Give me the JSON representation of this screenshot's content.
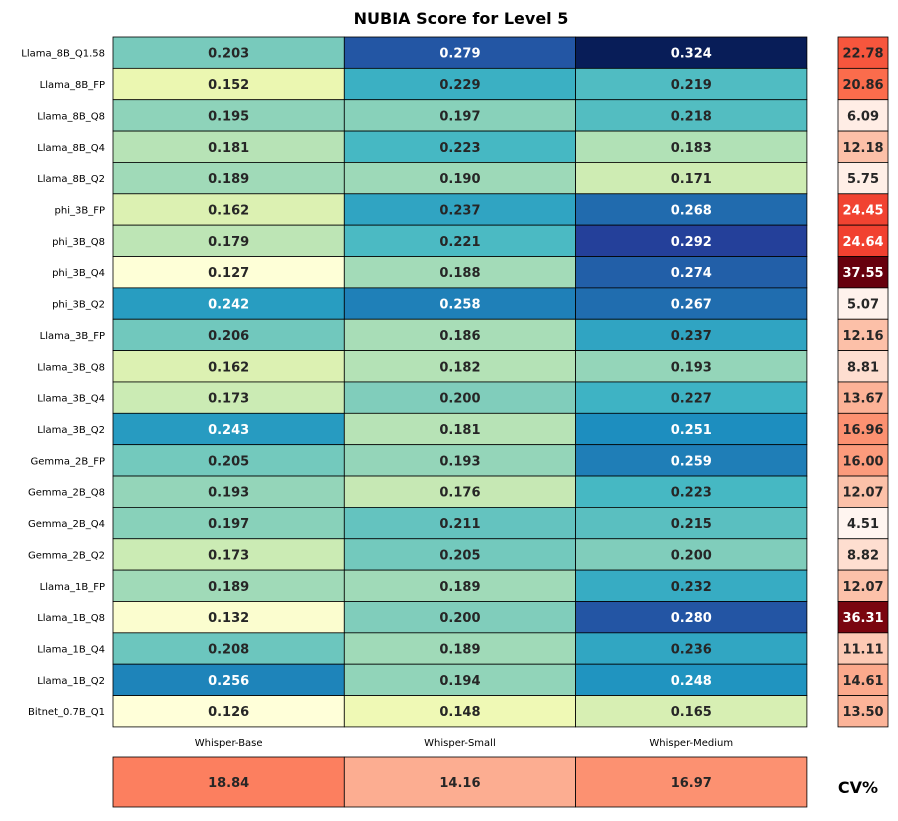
{
  "chart_data": {
    "type": "heatmap",
    "title": "NUBIA Score for Level 5",
    "rows": [
      "Llama_8B_Q1.58",
      "Llama_8B_FP",
      "Llama_8B_Q8",
      "Llama_8B_Q4",
      "Llama_8B_Q2",
      "phi_3B_FP",
      "phi_3B_Q8",
      "phi_3B_Q4",
      "phi_3B_Q2",
      "Llama_3B_FP",
      "Llama_3B_Q8",
      "Llama_3B_Q4",
      "Llama_3B_Q2",
      "Gemma_2B_FP",
      "Gemma_2B_Q8",
      "Gemma_2B_Q4",
      "Gemma_2B_Q2",
      "Llama_1B_FP",
      "Llama_1B_Q8",
      "Llama_1B_Q4",
      "Llama_1B_Q2",
      "Bitnet_0.7B_Q1"
    ],
    "columns": [
      "Whisper-Base",
      "Whisper-Small",
      "Whisper-Medium"
    ],
    "values": [
      [
        0.203,
        0.279,
        0.324
      ],
      [
        0.152,
        0.229,
        0.219
      ],
      [
        0.195,
        0.197,
        0.218
      ],
      [
        0.181,
        0.223,
        0.183
      ],
      [
        0.189,
        0.19,
        0.171
      ],
      [
        0.162,
        0.237,
        0.268
      ],
      [
        0.179,
        0.221,
        0.292
      ],
      [
        0.127,
        0.188,
        0.274
      ],
      [
        0.242,
        0.258,
        0.267
      ],
      [
        0.206,
        0.186,
        0.237
      ],
      [
        0.162,
        0.182,
        0.193
      ],
      [
        0.173,
        0.2,
        0.227
      ],
      [
        0.243,
        0.181,
        0.251
      ],
      [
        0.205,
        0.193,
        0.259
      ],
      [
        0.193,
        0.176,
        0.223
      ],
      [
        0.197,
        0.211,
        0.215
      ],
      [
        0.173,
        0.205,
        0.2
      ],
      [
        0.189,
        0.189,
        0.232
      ],
      [
        0.132,
        0.2,
        0.28
      ],
      [
        0.208,
        0.189,
        0.236
      ],
      [
        0.256,
        0.194,
        0.248
      ],
      [
        0.126,
        0.148,
        0.165
      ]
    ],
    "value_format": "0.000",
    "colormap": "YlGnBu",
    "color_range": [
      0.126,
      0.324
    ],
    "row_cv_percent": [
      22.78,
      20.86,
      6.09,
      12.18,
      5.75,
      24.45,
      24.64,
      37.55,
      5.07,
      12.16,
      8.81,
      13.67,
      16.96,
      16.0,
      12.07,
      4.51,
      8.82,
      12.07,
      36.31,
      11.11,
      14.61,
      13.5
    ],
    "column_cv_percent": [
      18.84,
      14.16,
      16.97
    ],
    "cv_colormap": "Reds",
    "cv_color_range": [
      4.51,
      37.55
    ],
    "cv_label": "CV%"
  }
}
